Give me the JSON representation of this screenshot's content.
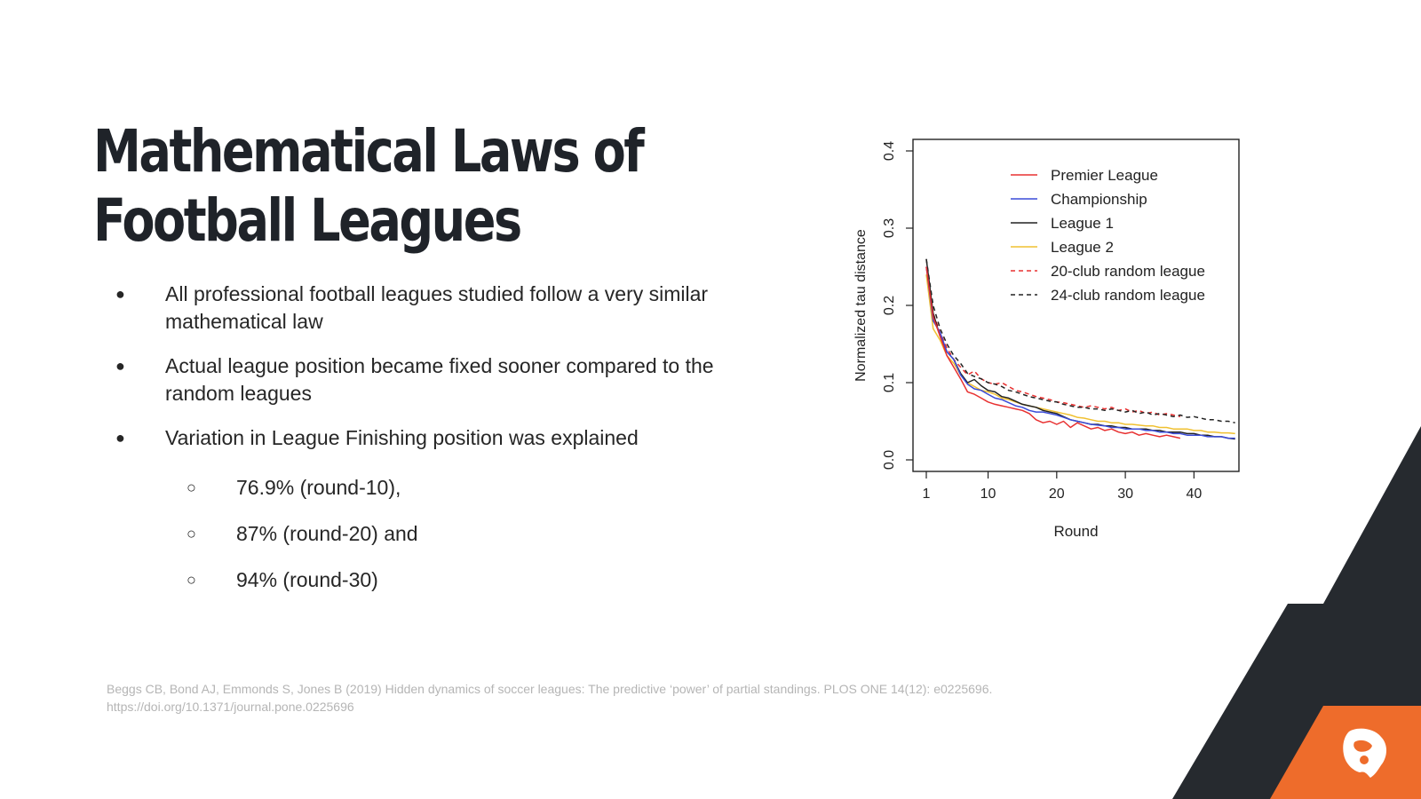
{
  "slide": {
    "title_line1": "Mathematical Laws of",
    "title_line2": "Football Leagues",
    "bullets": [
      "All professional football leagues studied follow a very similar mathematical law",
      "Actual league position became fixed sooner compared to the random leagues",
      "Variation in League Finishing position was explained"
    ],
    "sub_bullets": [
      "76.9% (round-10),",
      "87% (round-20) and",
      "94% (round-30)"
    ],
    "bullet_glyph": "●",
    "sub_bullet_glyph": "○",
    "citation_line1": "Beggs CB, Bond AJ, Emmonds S, Jones B (2019) Hidden dynamics of soccer leagues: The predictive ‘power’ of partial standings. PLOS ONE 14(12): e0225696.",
    "citation_line2": "https://doi.org/10.1371/journal.pone.0225696"
  },
  "decor": {
    "dark_color": "#262a2f",
    "accent_color": "#ee6c2b",
    "logo_icon": "bird-logo-icon"
  },
  "chart_data": {
    "type": "line",
    "title": "",
    "xlabel": "Round",
    "ylabel": "Normalized tau distance",
    "xlim": [
      1,
      45
    ],
    "ylim": [
      0.0,
      0.4
    ],
    "x_ticks": [
      "1",
      "10",
      "20",
      "30",
      "40"
    ],
    "y_ticks": [
      "0.0",
      "0.1",
      "0.2",
      "0.3",
      "0.4"
    ],
    "grid": false,
    "legend_position": "top-right",
    "series": [
      {
        "name": "Premier League",
        "color": "#e83030",
        "dash": false,
        "x": [
          1,
          2,
          3,
          4,
          5,
          6,
          7,
          8,
          9,
          10,
          11,
          12,
          13,
          14,
          15,
          16,
          17,
          18,
          19,
          20,
          21,
          22,
          23,
          24,
          25,
          26,
          27,
          28,
          29,
          30,
          31,
          32,
          33,
          34,
          35,
          36,
          37,
          38
        ],
        "y": [
          0.25,
          0.185,
          0.16,
          0.135,
          0.12,
          0.105,
          0.088,
          0.085,
          0.08,
          0.075,
          0.072,
          0.07,
          0.068,
          0.066,
          0.064,
          0.06,
          0.052,
          0.048,
          0.05,
          0.046,
          0.05,
          0.042,
          0.048,
          0.044,
          0.04,
          0.042,
          0.038,
          0.04,
          0.036,
          0.034,
          0.036,
          0.032,
          0.034,
          0.032,
          0.03,
          0.032,
          0.03,
          0.028
        ]
      },
      {
        "name": "Championship",
        "color": "#3a4bd8",
        "dash": false,
        "x": [
          1,
          2,
          3,
          4,
          5,
          6,
          7,
          8,
          9,
          10,
          11,
          12,
          13,
          14,
          15,
          16,
          17,
          18,
          19,
          20,
          21,
          22,
          23,
          24,
          25,
          26,
          27,
          28,
          29,
          30,
          31,
          32,
          33,
          34,
          35,
          36,
          37,
          38,
          39,
          40,
          41,
          42,
          43,
          44,
          45,
          46
        ],
        "y": [
          0.25,
          0.18,
          0.165,
          0.14,
          0.13,
          0.11,
          0.098,
          0.092,
          0.09,
          0.085,
          0.08,
          0.078,
          0.074,
          0.07,
          0.068,
          0.064,
          0.062,
          0.062,
          0.06,
          0.058,
          0.055,
          0.052,
          0.05,
          0.048,
          0.046,
          0.045,
          0.044,
          0.042,
          0.042,
          0.04,
          0.04,
          0.04,
          0.038,
          0.038,
          0.036,
          0.036,
          0.034,
          0.034,
          0.032,
          0.032,
          0.032,
          0.03,
          0.03,
          0.03,
          0.028,
          0.028
        ]
      },
      {
        "name": "League 1",
        "color": "#222222",
        "dash": false,
        "x": [
          1,
          2,
          3,
          4,
          5,
          6,
          7,
          8,
          9,
          10,
          11,
          12,
          13,
          14,
          15,
          16,
          17,
          18,
          19,
          20,
          21,
          22,
          23,
          24,
          25,
          26,
          27,
          28,
          29,
          30,
          31,
          32,
          33,
          34,
          35,
          36,
          37,
          38,
          39,
          40,
          41,
          42,
          43,
          44,
          45,
          46
        ],
        "y": [
          0.26,
          0.19,
          0.16,
          0.14,
          0.13,
          0.112,
          0.1,
          0.104,
          0.096,
          0.09,
          0.088,
          0.082,
          0.08,
          0.076,
          0.072,
          0.07,
          0.068,
          0.064,
          0.062,
          0.06,
          0.056,
          0.052,
          0.05,
          0.048,
          0.046,
          0.046,
          0.044,
          0.044,
          0.042,
          0.042,
          0.04,
          0.04,
          0.04,
          0.038,
          0.038,
          0.036,
          0.036,
          0.036,
          0.034,
          0.034,
          0.032,
          0.032,
          0.03,
          0.03,
          0.028,
          0.027
        ]
      },
      {
        "name": "League 2",
        "color": "#f0c030",
        "dash": false,
        "x": [
          1,
          2,
          3,
          4,
          5,
          6,
          7,
          8,
          9,
          10,
          11,
          12,
          13,
          14,
          15,
          16,
          17,
          18,
          19,
          20,
          21,
          22,
          23,
          24,
          25,
          26,
          27,
          28,
          29,
          30,
          31,
          32,
          33,
          34,
          35,
          36,
          37,
          38,
          39,
          40,
          41,
          42,
          43,
          44,
          45,
          46
        ],
        "y": [
          0.24,
          0.17,
          0.155,
          0.135,
          0.125,
          0.11,
          0.1,
          0.095,
          0.09,
          0.088,
          0.085,
          0.08,
          0.078,
          0.075,
          0.072,
          0.07,
          0.068,
          0.066,
          0.064,
          0.062,
          0.06,
          0.058,
          0.055,
          0.054,
          0.052,
          0.05,
          0.05,
          0.048,
          0.048,
          0.046,
          0.046,
          0.045,
          0.044,
          0.044,
          0.042,
          0.042,
          0.04,
          0.04,
          0.04,
          0.038,
          0.038,
          0.036,
          0.036,
          0.035,
          0.035,
          0.034
        ]
      },
      {
        "name": "20-club random league",
        "color": "#e83030",
        "dash": true,
        "x": [
          1,
          2,
          3,
          4,
          5,
          6,
          7,
          8,
          9,
          10,
          11,
          12,
          13,
          14,
          15,
          16,
          17,
          18,
          19,
          20,
          21,
          22,
          23,
          24,
          25,
          26,
          27,
          28,
          29,
          30,
          31,
          32,
          33,
          34,
          35,
          36,
          37,
          38
        ],
        "y": [
          0.25,
          0.19,
          0.165,
          0.145,
          0.13,
          0.12,
          0.11,
          0.115,
          0.105,
          0.1,
          0.098,
          0.1,
          0.095,
          0.09,
          0.088,
          0.085,
          0.082,
          0.08,
          0.078,
          0.075,
          0.074,
          0.072,
          0.07,
          0.068,
          0.07,
          0.068,
          0.066,
          0.068,
          0.064,
          0.066,
          0.062,
          0.064,
          0.06,
          0.062,
          0.058,
          0.06,
          0.058,
          0.056
        ]
      },
      {
        "name": "24-club random league",
        "color": "#222222",
        "dash": true,
        "x": [
          1,
          2,
          3,
          4,
          5,
          6,
          7,
          8,
          9,
          10,
          11,
          12,
          13,
          14,
          15,
          16,
          17,
          18,
          19,
          20,
          21,
          22,
          23,
          24,
          25,
          26,
          27,
          28,
          29,
          30,
          31,
          32,
          33,
          34,
          35,
          36,
          37,
          38,
          39,
          40,
          41,
          42,
          43,
          44,
          45,
          46
        ],
        "y": [
          0.26,
          0.2,
          0.17,
          0.15,
          0.135,
          0.125,
          0.112,
          0.108,
          0.105,
          0.1,
          0.098,
          0.095,
          0.09,
          0.088,
          0.085,
          0.082,
          0.08,
          0.078,
          0.076,
          0.075,
          0.072,
          0.07,
          0.068,
          0.068,
          0.066,
          0.066,
          0.064,
          0.066,
          0.064,
          0.062,
          0.064,
          0.06,
          0.062,
          0.058,
          0.06,
          0.058,
          0.056,
          0.058,
          0.055,
          0.056,
          0.054,
          0.052,
          0.052,
          0.05,
          0.05,
          0.048
        ]
      }
    ]
  }
}
